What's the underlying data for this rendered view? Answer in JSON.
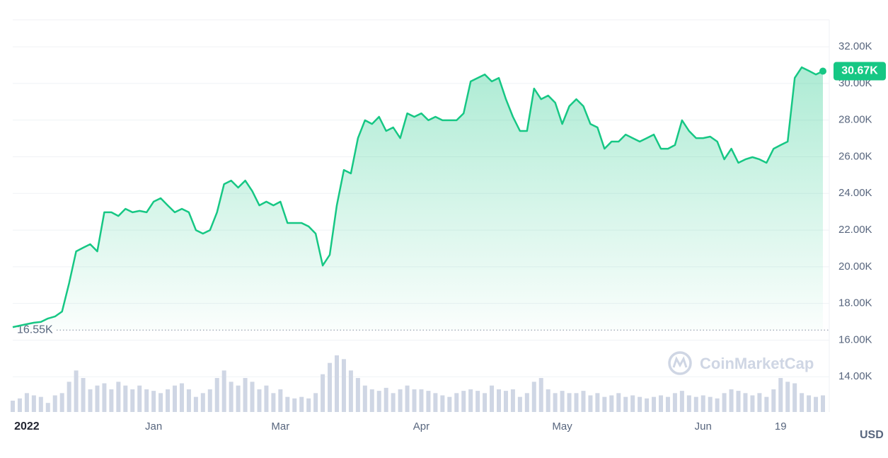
{
  "chart_data": {
    "type": "line",
    "color": "#16c784",
    "categories": [
      null,
      null,
      "2022",
      null,
      null,
      null,
      null,
      null,
      null,
      null,
      null,
      null,
      null,
      null,
      null,
      null,
      null,
      null,
      null,
      null,
      "Jan",
      null,
      null,
      null,
      null,
      null,
      null,
      null,
      null,
      null,
      null,
      null,
      null,
      null,
      null,
      null,
      null,
      null,
      "Mar",
      null,
      null,
      null,
      null,
      null,
      null,
      null,
      null,
      null,
      null,
      null,
      null,
      null,
      null,
      null,
      null,
      null,
      null,
      null,
      "Apr",
      null,
      null,
      null,
      null,
      null,
      null,
      null,
      null,
      null,
      null,
      null,
      null,
      null,
      null,
      null,
      null,
      null,
      null,
      null,
      "May",
      null,
      null,
      null,
      null,
      null,
      null,
      null,
      null,
      null,
      null,
      null,
      null,
      null,
      null,
      null,
      null,
      null,
      null,
      null,
      "Jun",
      null,
      null,
      null,
      null,
      null,
      null,
      null,
      null,
      null,
      null,
      "19",
      null,
      null,
      null,
      null,
      null,
      null
    ],
    "values": [
      16710,
      16790,
      16870,
      16950,
      16990,
      17180,
      17290,
      17560,
      19110,
      20840,
      21040,
      21230,
      20840,
      22970,
      22970,
      22770,
      23160,
      22970,
      23050,
      22970,
      23550,
      23740,
      23350,
      22970,
      23160,
      22970,
      22000,
      21810,
      22000,
      22970,
      24510,
      24700,
      24320,
      24700,
      24130,
      23350,
      23550,
      23350,
      23550,
      22390,
      22390,
      22390,
      22200,
      21810,
      20070,
      20650,
      23350,
      25280,
      25090,
      27020,
      27990,
      27790,
      28180,
      27410,
      27600,
      27020,
      28370,
      28180,
      28370,
      27990,
      28180,
      27990,
      27990,
      27990,
      28370,
      30110,
      30300,
      30490,
      30110,
      30300,
      29140,
      28180,
      27410,
      27410,
      29720,
      29140,
      29340,
      28950,
      27790,
      28760,
      29140,
      28760,
      27790,
      27600,
      26440,
      26830,
      26830,
      27210,
      27020,
      26830,
      27020,
      27210,
      26440,
      26440,
      26640,
      27990,
      27410,
      27020,
      27020,
      27100,
      26830,
      25860,
      26440,
      25670,
      25860,
      25980,
      25860,
      25670,
      26440,
      26640,
      26830,
      30300,
      30880,
      30690,
      30490,
      30670
    ],
    "volume": [
      15,
      18,
      25,
      22,
      20,
      12,
      22,
      25,
      40,
      55,
      45,
      30,
      35,
      38,
      30,
      40,
      35,
      30,
      35,
      30,
      28,
      25,
      30,
      35,
      38,
      30,
      20,
      25,
      30,
      45,
      55,
      40,
      35,
      45,
      40,
      30,
      35,
      25,
      30,
      20,
      18,
      20,
      18,
      25,
      50,
      65,
      75,
      70,
      55,
      45,
      35,
      30,
      28,
      32,
      25,
      30,
      35,
      30,
      30,
      28,
      25,
      22,
      20,
      25,
      28,
      30,
      28,
      25,
      35,
      30,
      28,
      30,
      20,
      25,
      40,
      45,
      30,
      25,
      28,
      25,
      25,
      28,
      22,
      25,
      20,
      22,
      25,
      20,
      22,
      20,
      18,
      20,
      22,
      20,
      25,
      28,
      22,
      20,
      22,
      20,
      18,
      25,
      30,
      28,
      25,
      22,
      25,
      20,
      30,
      45,
      40,
      38,
      25,
      22,
      20,
      22
    ],
    "ylim": [
      12080,
      33470
    ],
    "yticks": [
      {
        "value": 14000,
        "label": "14.00K"
      },
      {
        "value": 16000,
        "label": "16.00K"
      },
      {
        "value": 18000,
        "label": "18.00K"
      },
      {
        "value": 20000,
        "label": "20.00K"
      },
      {
        "value": 22000,
        "label": "22.00K"
      },
      {
        "value": 24000,
        "label": "24.00K"
      },
      {
        "value": 26000,
        "label": "26.00K"
      },
      {
        "value": 28000,
        "label": "28.00K"
      },
      {
        "value": 30000,
        "label": "30.00K"
      },
      {
        "value": 32000,
        "label": "32.00K"
      }
    ],
    "min_label": {
      "value": 16550,
      "label": "16.55K"
    },
    "last_label": {
      "value": 30670,
      "label": "30.67K"
    },
    "currency": "USD",
    "watermark": "CoinMarketCap",
    "grid": true
  }
}
